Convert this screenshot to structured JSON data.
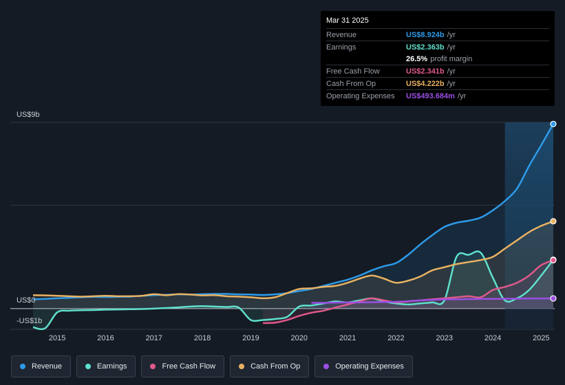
{
  "chart_data": {
    "type": "area",
    "title": "",
    "y_axis_labels": {
      "top": "US$9b",
      "zero": "US$0",
      "bottom": "-US$1b"
    },
    "ylim": [
      -1,
      9
    ],
    "x_ticks": [
      "2015",
      "2016",
      "2017",
      "2018",
      "2019",
      "2020",
      "2021",
      "2022",
      "2023",
      "2024",
      "2025"
    ],
    "x_domain": [
      2014.5,
      2025.25
    ],
    "forecast_shade_start": 2024.25,
    "series": [
      {
        "key": "revenue",
        "name": "Revenue",
        "color": "#2d9bea",
        "fill": true,
        "x": [
          2014.5,
          2014.75,
          2015.0,
          2015.25,
          2015.5,
          2015.75,
          2016.0,
          2016.25,
          2016.5,
          2016.75,
          2017.0,
          2017.25,
          2017.5,
          2017.75,
          2018.0,
          2018.25,
          2018.5,
          2018.75,
          2019.0,
          2019.25,
          2019.5,
          2019.75,
          2020.0,
          2020.25,
          2020.5,
          2020.75,
          2021.0,
          2021.25,
          2021.5,
          2021.75,
          2022.0,
          2022.25,
          2022.5,
          2022.75,
          2023.0,
          2023.25,
          2023.5,
          2023.75,
          2024.0,
          2024.25,
          2024.5,
          2024.75,
          2025.0,
          2025.25
        ],
        "values": [
          0.45,
          0.47,
          0.5,
          0.52,
          0.55,
          0.57,
          0.56,
          0.57,
          0.58,
          0.62,
          0.65,
          0.67,
          0.69,
          0.68,
          0.7,
          0.71,
          0.71,
          0.69,
          0.68,
          0.66,
          0.69,
          0.75,
          0.85,
          0.95,
          1.1,
          1.25,
          1.4,
          1.6,
          1.85,
          2.05,
          2.2,
          2.6,
          3.1,
          3.55,
          3.95,
          4.15,
          4.25,
          4.4,
          4.75,
          5.2,
          5.8,
          6.9,
          7.9,
          8.924
        ]
      },
      {
        "key": "earnings",
        "name": "Earnings",
        "color": "#5fe0cc",
        "fill": true,
        "x": [
          2014.5,
          2014.75,
          2015.0,
          2015.25,
          2015.5,
          2015.75,
          2016.0,
          2016.25,
          2016.5,
          2016.75,
          2017.0,
          2017.25,
          2017.5,
          2017.75,
          2018.0,
          2018.25,
          2018.5,
          2018.75,
          2019.0,
          2019.25,
          2019.5,
          2019.75,
          2020.0,
          2020.25,
          2020.5,
          2020.75,
          2021.0,
          2021.25,
          2021.5,
          2021.75,
          2022.0,
          2022.25,
          2022.5,
          2022.75,
          2023.0,
          2023.25,
          2023.5,
          2023.75,
          2024.0,
          2024.25,
          2024.5,
          2024.75,
          2025.0,
          2025.25
        ],
        "values": [
          -0.9,
          -0.95,
          -0.18,
          -0.1,
          -0.08,
          -0.07,
          -0.05,
          -0.04,
          -0.03,
          -0.02,
          0.0,
          0.03,
          0.06,
          0.1,
          0.12,
          0.1,
          0.08,
          0.05,
          -0.55,
          -0.55,
          -0.5,
          -0.4,
          0.1,
          0.15,
          0.25,
          0.35,
          0.3,
          0.4,
          0.5,
          0.35,
          0.25,
          0.2,
          0.25,
          0.3,
          0.4,
          2.5,
          2.6,
          2.7,
          1.5,
          0.4,
          0.5,
          0.9,
          1.6,
          2.363
        ]
      },
      {
        "key": "fcf",
        "name": "Free Cash Flow",
        "color": "#e0598b",
        "fill": true,
        "x": [
          2019.25,
          2019.5,
          2019.75,
          2020.0,
          2020.25,
          2020.5,
          2020.75,
          2021.0,
          2021.25,
          2021.5,
          2021.75,
          2022.0,
          2022.25,
          2022.5,
          2022.75,
          2023.0,
          2023.25,
          2023.5,
          2023.75,
          2024.0,
          2024.25,
          2024.5,
          2024.75,
          2025.0,
          2025.25
        ],
        "values": [
          -0.7,
          -0.68,
          -0.55,
          -0.35,
          -0.2,
          -0.1,
          0.05,
          0.2,
          0.35,
          0.5,
          0.4,
          0.3,
          0.35,
          0.4,
          0.45,
          0.5,
          0.55,
          0.6,
          0.55,
          0.9,
          1.05,
          1.25,
          1.6,
          2.1,
          2.341
        ]
      },
      {
        "key": "cfo",
        "name": "Cash From Op",
        "color": "#e9b262",
        "fill": true,
        "x": [
          2014.5,
          2014.75,
          2015.0,
          2015.25,
          2015.5,
          2015.75,
          2016.0,
          2016.25,
          2016.5,
          2016.75,
          2017.0,
          2017.25,
          2017.5,
          2017.75,
          2018.0,
          2018.25,
          2018.5,
          2018.75,
          2019.0,
          2019.25,
          2019.5,
          2019.75,
          2020.0,
          2020.25,
          2020.5,
          2020.75,
          2021.0,
          2021.25,
          2021.5,
          2021.75,
          2022.0,
          2022.25,
          2022.5,
          2022.75,
          2023.0,
          2023.25,
          2023.5,
          2023.75,
          2024.0,
          2024.25,
          2024.5,
          2024.75,
          2025.0,
          2025.25
        ],
        "values": [
          0.65,
          0.64,
          0.62,
          0.6,
          0.58,
          0.6,
          0.62,
          0.6,
          0.6,
          0.62,
          0.7,
          0.65,
          0.7,
          0.68,
          0.64,
          0.65,
          0.6,
          0.58,
          0.55,
          0.5,
          0.55,
          0.75,
          0.95,
          0.98,
          1.05,
          1.1,
          1.25,
          1.45,
          1.6,
          1.45,
          1.25,
          1.35,
          1.55,
          1.85,
          2.0,
          2.15,
          2.25,
          2.35,
          2.5,
          2.9,
          3.3,
          3.7,
          4.0,
          4.222
        ]
      },
      {
        "key": "opex",
        "name": "Operating Expenses",
        "color": "#9b4fe3",
        "fill": true,
        "x": [
          2020.25,
          2020.5,
          2020.75,
          2021.0,
          2021.25,
          2021.5,
          2021.75,
          2022.0,
          2022.25,
          2022.5,
          2022.75,
          2023.0,
          2023.25,
          2023.5,
          2023.75,
          2024.0,
          2024.25,
          2024.5,
          2024.75,
          2025.0,
          2025.25
        ],
        "values": [
          0.28,
          0.28,
          0.29,
          0.3,
          0.3,
          0.31,
          0.32,
          0.33,
          0.36,
          0.4,
          0.42,
          0.45,
          0.45,
          0.46,
          0.47,
          0.47,
          0.48,
          0.48,
          0.49,
          0.49,
          0.493684
        ]
      }
    ]
  },
  "tooltip": {
    "date": "Mar 31 2025",
    "rows": [
      {
        "label": "Revenue",
        "value": "US$8.924b",
        "unit": "/yr",
        "color": "#2d9bea"
      },
      {
        "label": "Earnings",
        "value": "US$2.363b",
        "unit": "/yr",
        "color": "#5fe0cc"
      },
      {
        "label": "Free Cash Flow",
        "value": "US$2.341b",
        "unit": "/yr",
        "color": "#e0598b"
      },
      {
        "label": "Cash From Op",
        "value": "US$4.222b",
        "unit": "/yr",
        "color": "#e9b262"
      },
      {
        "label": "Operating Expenses",
        "value": "US$493.684m",
        "unit": "/yr",
        "color": "#9b4fe3"
      }
    ],
    "margin": {
      "value": "26.5%",
      "text": "profit margin"
    }
  },
  "legend": [
    {
      "name": "Revenue",
      "color": "#2d9bea"
    },
    {
      "name": "Earnings",
      "color": "#5fe0cc"
    },
    {
      "name": "Free Cash Flow",
      "color": "#e0598b"
    },
    {
      "name": "Cash From Op",
      "color": "#e9b262"
    },
    {
      "name": "Operating Expenses",
      "color": "#9b4fe3"
    }
  ]
}
